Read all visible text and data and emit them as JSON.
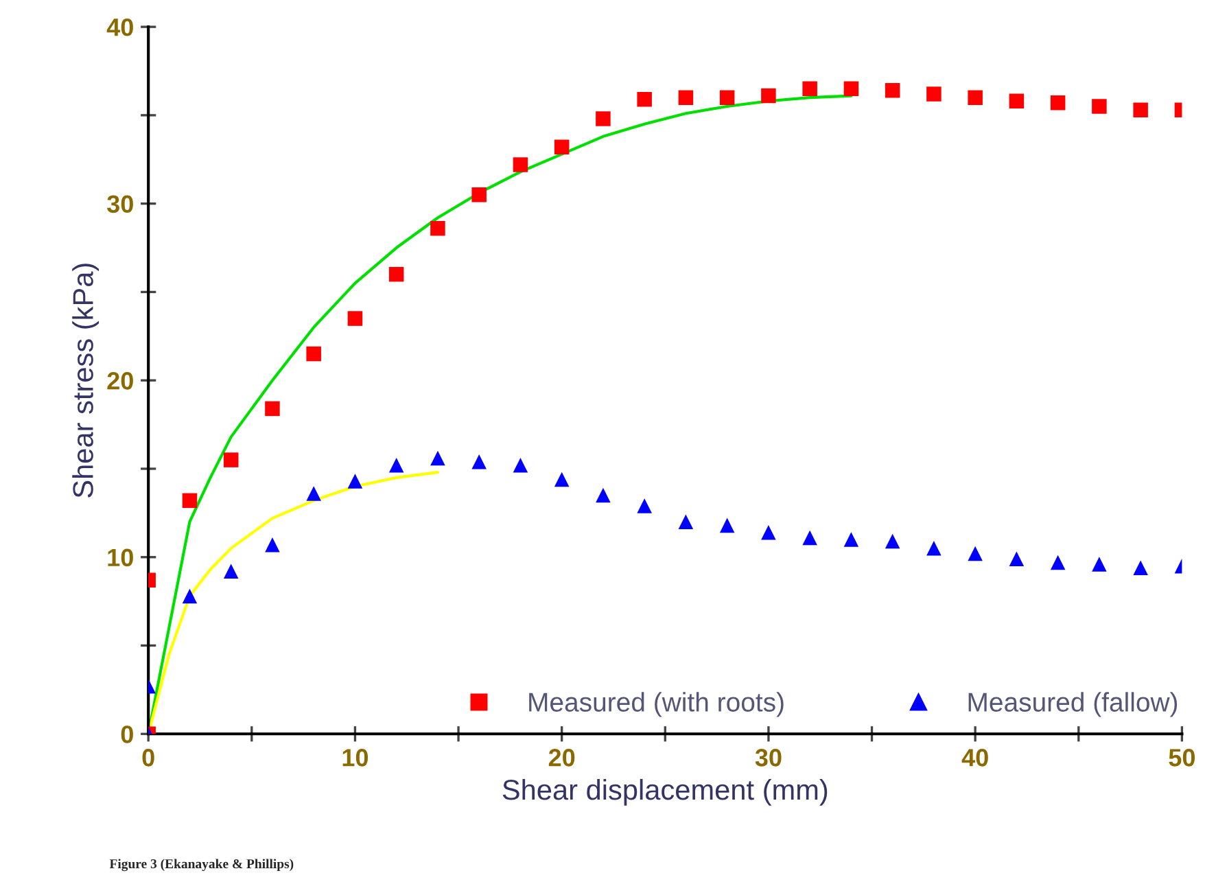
{
  "chart_data": {
    "type": "scatter",
    "xlabel": "Shear displacement (mm)",
    "ylabel": "Shear stress (kPa)",
    "annotations": [
      "Figure 3 (Ekanayake & Phillips)"
    ],
    "xlim": [
      0,
      50
    ],
    "ylim": [
      0,
      40
    ],
    "xticks": [
      0,
      {
        "value": 5,
        "label": null
      },
      10,
      {
        "value": 15,
        "label": null
      },
      20,
      {
        "value": 25,
        "label": null
      },
      30,
      {
        "value": 35,
        "label": null
      },
      40,
      {
        "value": 45,
        "label": null
      },
      50
    ],
    "yticks": [
      0,
      {
        "value": 5,
        "label": null
      },
      10,
      {
        "value": 15,
        "label": null
      },
      20,
      {
        "value": 25,
        "label": null
      },
      30,
      {
        "value": 35,
        "label": null
      },
      40
    ],
    "grid": false,
    "legend": "bottom right",
    "series": [
      {
        "name": "Measured (with roots)",
        "color": "#ff0000",
        "marker": "square",
        "x": [
          0,
          0,
          2,
          4,
          6,
          8,
          10,
          12,
          14,
          16,
          18,
          20,
          22,
          24,
          26,
          28,
          30,
          32,
          34,
          36,
          38,
          40,
          42,
          44,
          46,
          48,
          50
        ],
        "values": [
          0,
          8.7,
          13.2,
          15.5,
          18.4,
          21.5,
          23.5,
          26,
          28.6,
          30.5,
          32.2,
          33.2,
          34.8,
          35.9,
          36,
          36,
          36.1,
          36.5,
          36.5,
          36.4,
          36.2,
          36,
          35.8,
          35.7,
          35.5,
          35.3,
          35.3
        ]
      },
      {
        "name": "Measured (fallow)",
        "color": "#0000ff",
        "marker": "triangle",
        "x": [
          0,
          0,
          2,
          4,
          6,
          8,
          10,
          12,
          14,
          16,
          18,
          20,
          22,
          24,
          26,
          28,
          30,
          32,
          34,
          36,
          38,
          40,
          42,
          44,
          46,
          48,
          50
        ],
        "values": [
          0,
          2.7,
          7.8,
          9.2,
          10.7,
          13.6,
          14.3,
          15.2,
          15.6,
          15.4,
          15.2,
          14.4,
          13.5,
          12.9,
          12,
          11.8,
          11.4,
          11.1,
          11,
          10.9,
          10.5,
          10.2,
          9.9,
          9.7,
          9.6,
          9.4,
          9.5
        ]
      },
      {
        "type": "line",
        "color": "#00e000",
        "marker": "none",
        "line_style": "solid",
        "x": [
          0,
          1,
          2,
          3,
          4,
          6,
          8,
          10,
          12,
          14,
          16,
          18,
          20,
          22,
          24,
          26,
          28,
          30,
          32,
          34
        ],
        "values": [
          0,
          6,
          12,
          14.5,
          16.8,
          20,
          23,
          25.5,
          27.5,
          29.2,
          30.6,
          31.8,
          32.8,
          33.8,
          34.5,
          35.1,
          35.5,
          35.8,
          36,
          36.1
        ]
      },
      {
        "type": "line",
        "color": "#ffff00",
        "marker": "none",
        "line_style": "solid",
        "x": [
          0,
          1,
          2,
          3,
          4,
          6,
          8,
          10,
          12,
          14
        ],
        "values": [
          0,
          4.5,
          7.8,
          9.3,
          10.5,
          12.2,
          13.2,
          14,
          14.5,
          14.8
        ]
      }
    ]
  }
}
